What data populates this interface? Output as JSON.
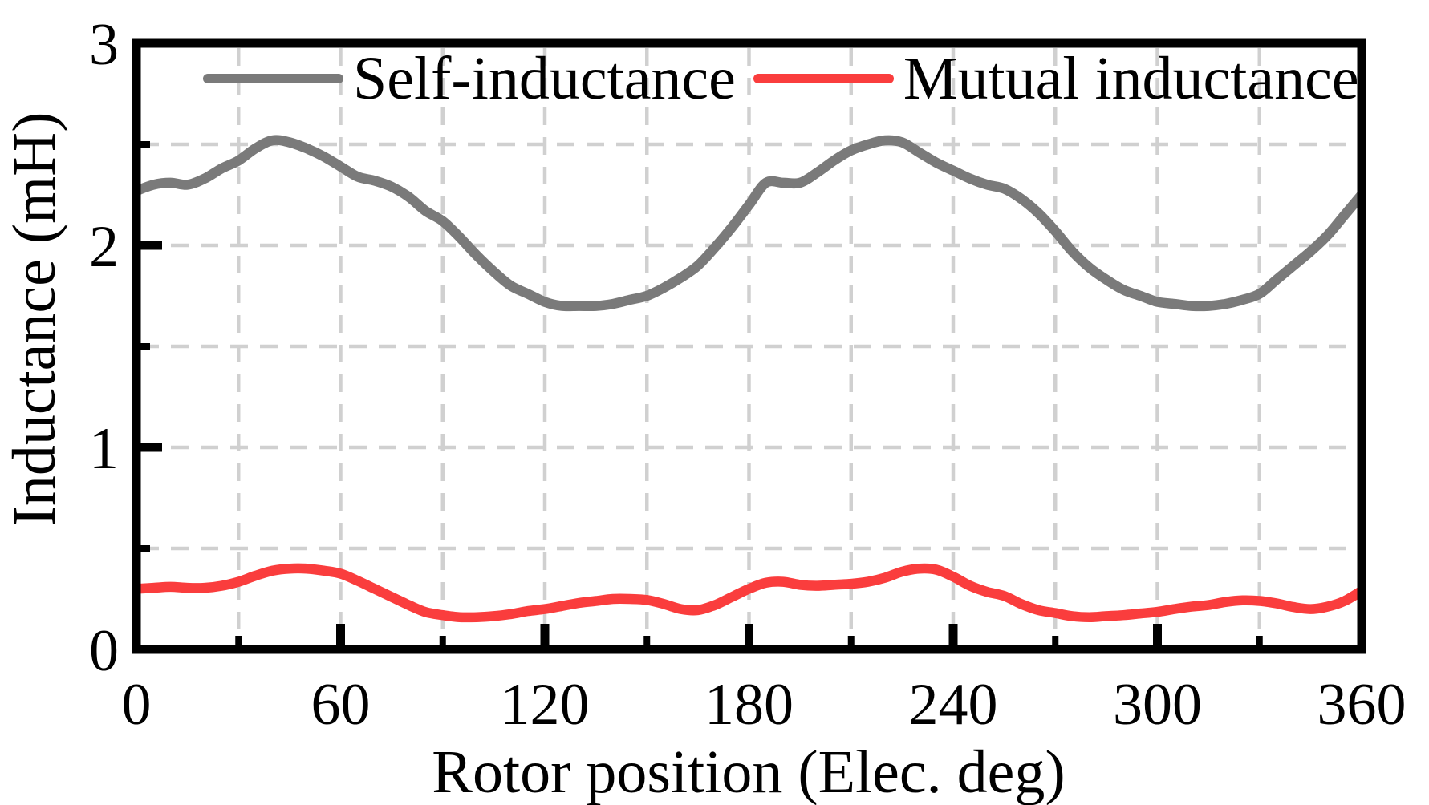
{
  "chart_data": {
    "type": "line",
    "title": "",
    "xlabel": "Rotor position (Elec. deg)",
    "ylabel": "Inductance (mH)",
    "xlim": [
      0,
      360
    ],
    "ylim": [
      0,
      3
    ],
    "x_major_ticks": [
      0,
      60,
      120,
      180,
      240,
      300,
      360
    ],
    "x_minor_ticks": [
      30,
      90,
      150,
      210,
      270,
      330
    ],
    "y_major_ticks": [
      0,
      1,
      2,
      3
    ],
    "y_minor_ticks": [
      0.5,
      1.5,
      2.5
    ],
    "grid": "on",
    "grid_style": "dashed",
    "grid_color": "#d0d0d0",
    "axis_color": "#000000",
    "legend_position": "top-inside-horizontal",
    "x": [
      0,
      5,
      10,
      15,
      20,
      25,
      30,
      35,
      40,
      45,
      50,
      55,
      60,
      65,
      70,
      75,
      80,
      85,
      90,
      95,
      100,
      105,
      110,
      115,
      120,
      125,
      130,
      135,
      140,
      145,
      150,
      155,
      160,
      165,
      170,
      175,
      180,
      185,
      190,
      195,
      200,
      205,
      210,
      215,
      220,
      225,
      230,
      235,
      240,
      245,
      250,
      255,
      260,
      265,
      270,
      275,
      280,
      285,
      290,
      295,
      300,
      305,
      310,
      315,
      320,
      325,
      330,
      335,
      340,
      345,
      350,
      355,
      360
    ],
    "series": [
      {
        "name": "Self-inductance",
        "color": "#7a7a7a",
        "y": [
          2.27,
          2.3,
          2.31,
          2.3,
          2.33,
          2.38,
          2.42,
          2.48,
          2.52,
          2.51,
          2.48,
          2.44,
          2.39,
          2.34,
          2.32,
          2.29,
          2.24,
          2.17,
          2.12,
          2.04,
          1.95,
          1.87,
          1.8,
          1.76,
          1.72,
          1.7,
          1.7,
          1.7,
          1.71,
          1.73,
          1.75,
          1.79,
          1.84,
          1.9,
          1.99,
          2.09,
          2.2,
          2.31,
          2.31,
          2.31,
          2.36,
          2.42,
          2.47,
          2.5,
          2.52,
          2.51,
          2.46,
          2.41,
          2.37,
          2.33,
          2.3,
          2.28,
          2.23,
          2.16,
          2.07,
          1.97,
          1.89,
          1.83,
          1.78,
          1.75,
          1.72,
          1.71,
          1.7,
          1.7,
          1.71,
          1.73,
          1.76,
          1.83,
          1.9,
          1.97,
          2.05,
          2.15,
          2.25
        ]
      },
      {
        "name": "Mutual inductance",
        "color": "#fa3d3d",
        "y": [
          0.3,
          0.305,
          0.31,
          0.305,
          0.305,
          0.315,
          0.335,
          0.365,
          0.39,
          0.4,
          0.4,
          0.39,
          0.375,
          0.34,
          0.3,
          0.26,
          0.22,
          0.185,
          0.17,
          0.16,
          0.16,
          0.165,
          0.175,
          0.19,
          0.2,
          0.215,
          0.23,
          0.24,
          0.25,
          0.25,
          0.245,
          0.225,
          0.2,
          0.195,
          0.22,
          0.26,
          0.3,
          0.33,
          0.335,
          0.32,
          0.315,
          0.32,
          0.325,
          0.335,
          0.355,
          0.385,
          0.4,
          0.395,
          0.36,
          0.315,
          0.285,
          0.265,
          0.225,
          0.195,
          0.18,
          0.165,
          0.16,
          0.165,
          0.17,
          0.178,
          0.186,
          0.2,
          0.212,
          0.22,
          0.235,
          0.243,
          0.24,
          0.228,
          0.21,
          0.2,
          0.212,
          0.24,
          0.29
        ]
      }
    ]
  }
}
